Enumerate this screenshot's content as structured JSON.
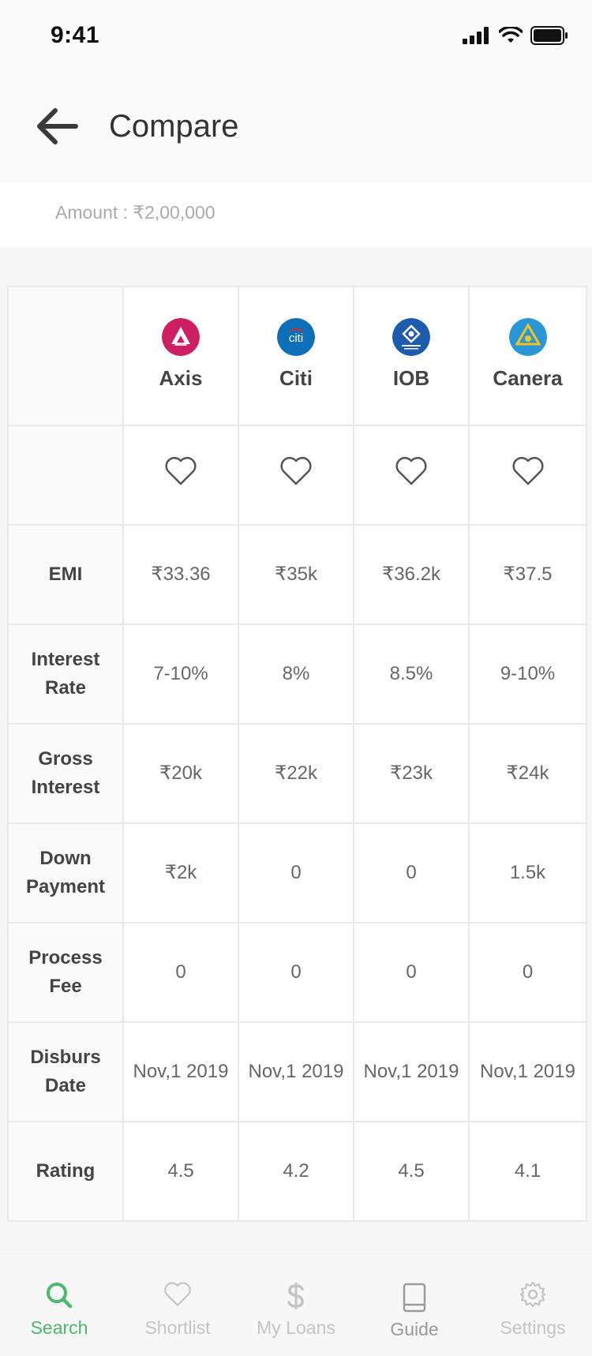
{
  "status_bar": {
    "time": "9:41"
  },
  "header": {
    "title": "Compare"
  },
  "amount": {
    "text": "Amount : ₹2,00,000"
  },
  "banks": [
    {
      "name": "Axis",
      "logo": "axis-bank-logo",
      "color": "#ce1f63"
    },
    {
      "name": "Citi",
      "logo": "citi-bank-logo",
      "color": "#0c6fb8"
    },
    {
      "name": "IOB",
      "logo": "iob-bank-logo",
      "color": "#1c5bad"
    },
    {
      "name": "Canera",
      "logo": "canara-bank-logo",
      "color": "#2996d6"
    }
  ],
  "rows": [
    {
      "label": "EMI",
      "values": [
        "₹33.36",
        "₹35k",
        "₹36.2k",
        "₹37.5"
      ]
    },
    {
      "label": "Interest Rate",
      "values": [
        "7-10%",
        "8%",
        "8.5%",
        "9-10%"
      ]
    },
    {
      "label": "Gross Interest",
      "values": [
        "₹20k",
        "₹22k",
        "₹23k",
        "₹24k"
      ]
    },
    {
      "label": "Down Payment",
      "values": [
        "₹2k",
        "0",
        "0",
        "1.5k"
      ]
    },
    {
      "label": "Process Fee",
      "values": [
        "0",
        "0",
        "0",
        "0"
      ]
    },
    {
      "label": "Disburs Date",
      "values": [
        "Nov,1 2019",
        "Nov,1 2019",
        "Nov,1 2019",
        "Nov,1 2019"
      ]
    },
    {
      "label": "Rating",
      "values": [
        "4.5",
        "4.2",
        "4.5",
        "4.1"
      ]
    }
  ],
  "tabs": [
    {
      "label": "Search",
      "icon": "search-icon",
      "active": true
    },
    {
      "label": "Shortlist",
      "icon": "heart-icon",
      "active": false
    },
    {
      "label": "My Loans",
      "icon": "dollar-icon",
      "active": false
    },
    {
      "label": "Guide",
      "icon": "book-icon",
      "active": false
    },
    {
      "label": "Settings",
      "icon": "gear-icon",
      "active": false
    }
  ],
  "colors": {
    "accent": "#4cb86a",
    "inactive": "#c4c4c4"
  }
}
